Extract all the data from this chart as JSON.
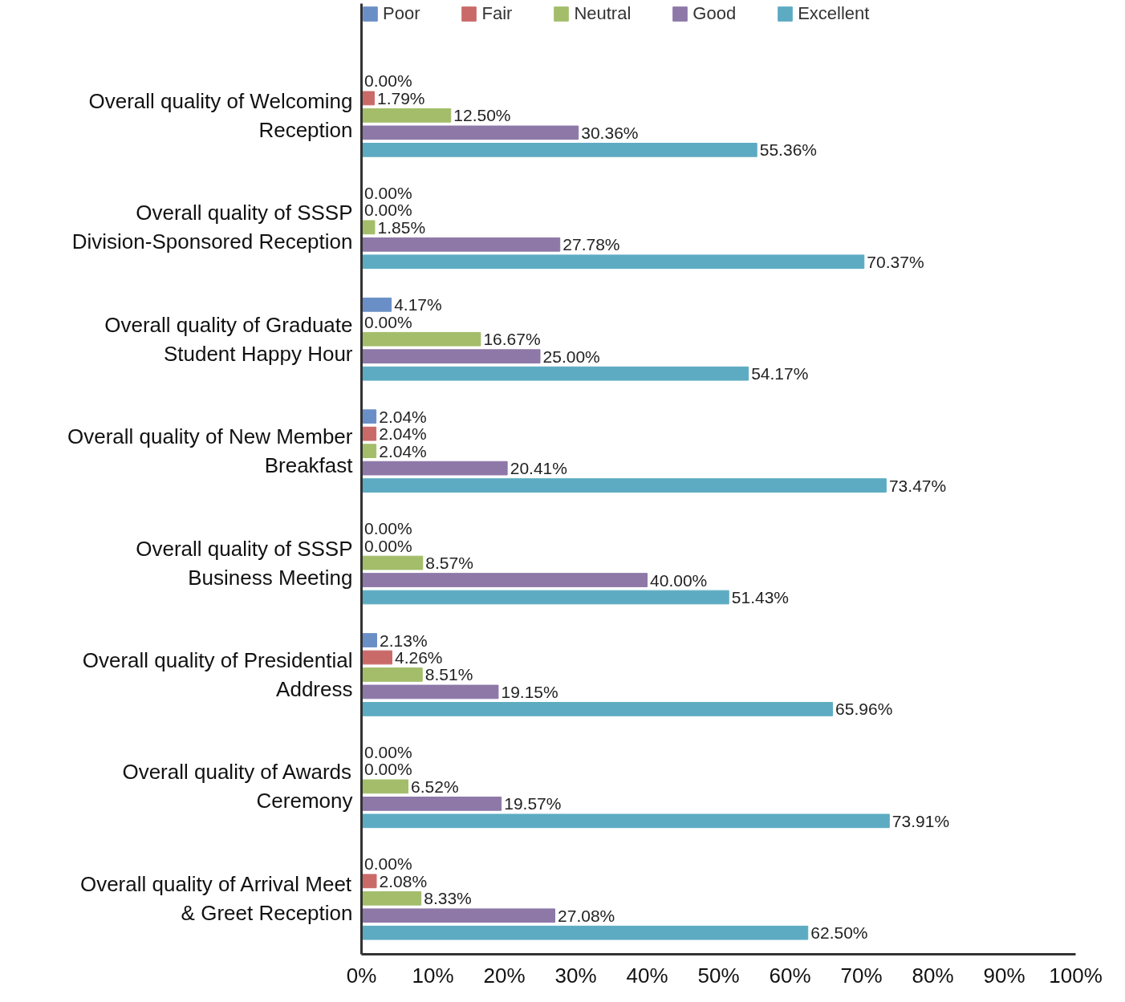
{
  "chart_data": {
    "type": "bar",
    "orientation": "horizontal",
    "categories": [
      "Overall quality of Welcoming Reception",
      "Overall quality of SSSP Division-Sponsored Reception",
      "Overall quality of Graduate Student Happy Hour",
      "Overall quality of New Member Breakfast",
      "Overall quality of SSSP Business Meeting",
      "Overall quality of Presidential Address",
      "Overall quality of Awards Ceremony",
      "Overall quality of Arrival Meet & Greet Reception"
    ],
    "series": [
      {
        "name": "Poor",
        "color": "#6a8fc6",
        "values": [
          0,
          0,
          4.17,
          2.04,
          0,
          2.13,
          0,
          0
        ],
        "value_labels": [
          "0.00%",
          "0.00%",
          "4.17%",
          "2.04%",
          "0.00%",
          "2.13%",
          "0.00%",
          "0.00%"
        ]
      },
      {
        "name": "Fair",
        "color": "#c96a68",
        "values": [
          1.79,
          0,
          0,
          2.04,
          0,
          4.26,
          0,
          2.08
        ],
        "value_labels": [
          "1.79%",
          "0.00%",
          "0.00%",
          "2.04%",
          "0.00%",
          "4.26%",
          "0.00%",
          "2.08%"
        ]
      },
      {
        "name": "Neutral",
        "color": "#a3bd6b",
        "values": [
          12.5,
          1.85,
          16.67,
          2.04,
          8.57,
          8.51,
          6.52,
          8.33
        ],
        "value_labels": [
          "12.50%",
          "1.85%",
          "16.67%",
          "2.04%",
          "8.57%",
          "8.51%",
          "6.52%",
          "8.33%"
        ]
      },
      {
        "name": "Good",
        "color": "#8d78a8",
        "values": [
          30.36,
          27.78,
          25.0,
          20.41,
          40.0,
          19.15,
          19.57,
          27.08
        ],
        "value_labels": [
          "30.36%",
          "27.78%",
          "25.00%",
          "20.41%",
          "40.00%",
          "19.15%",
          "19.57%",
          "27.08%"
        ]
      },
      {
        "name": "Excellent",
        "color": "#5dabc2",
        "values": [
          55.36,
          70.37,
          54.17,
          73.47,
          51.43,
          65.96,
          73.91,
          62.5
        ],
        "value_labels": [
          "55.36%",
          "70.37%",
          "54.17%",
          "73.47%",
          "51.43%",
          "65.96%",
          "73.91%",
          "62.50%"
        ]
      }
    ],
    "xlim": [
      0,
      100
    ],
    "xticks": [
      {
        "value": 0,
        "label": "0%"
      },
      {
        "value": 10,
        "label": "10%"
      },
      {
        "value": 20,
        "label": "20%"
      },
      {
        "value": 30,
        "label": "30%"
      },
      {
        "value": 40,
        "label": "40%"
      },
      {
        "value": 50,
        "label": "50%"
      },
      {
        "value": 60,
        "label": "60%"
      },
      {
        "value": 70,
        "label": "70%"
      },
      {
        "value": 80,
        "label": "80%"
      },
      {
        "value": 90,
        "label": "90%"
      },
      {
        "value": 100,
        "label": "100%"
      }
    ],
    "grid": false,
    "legend": "top left"
  }
}
